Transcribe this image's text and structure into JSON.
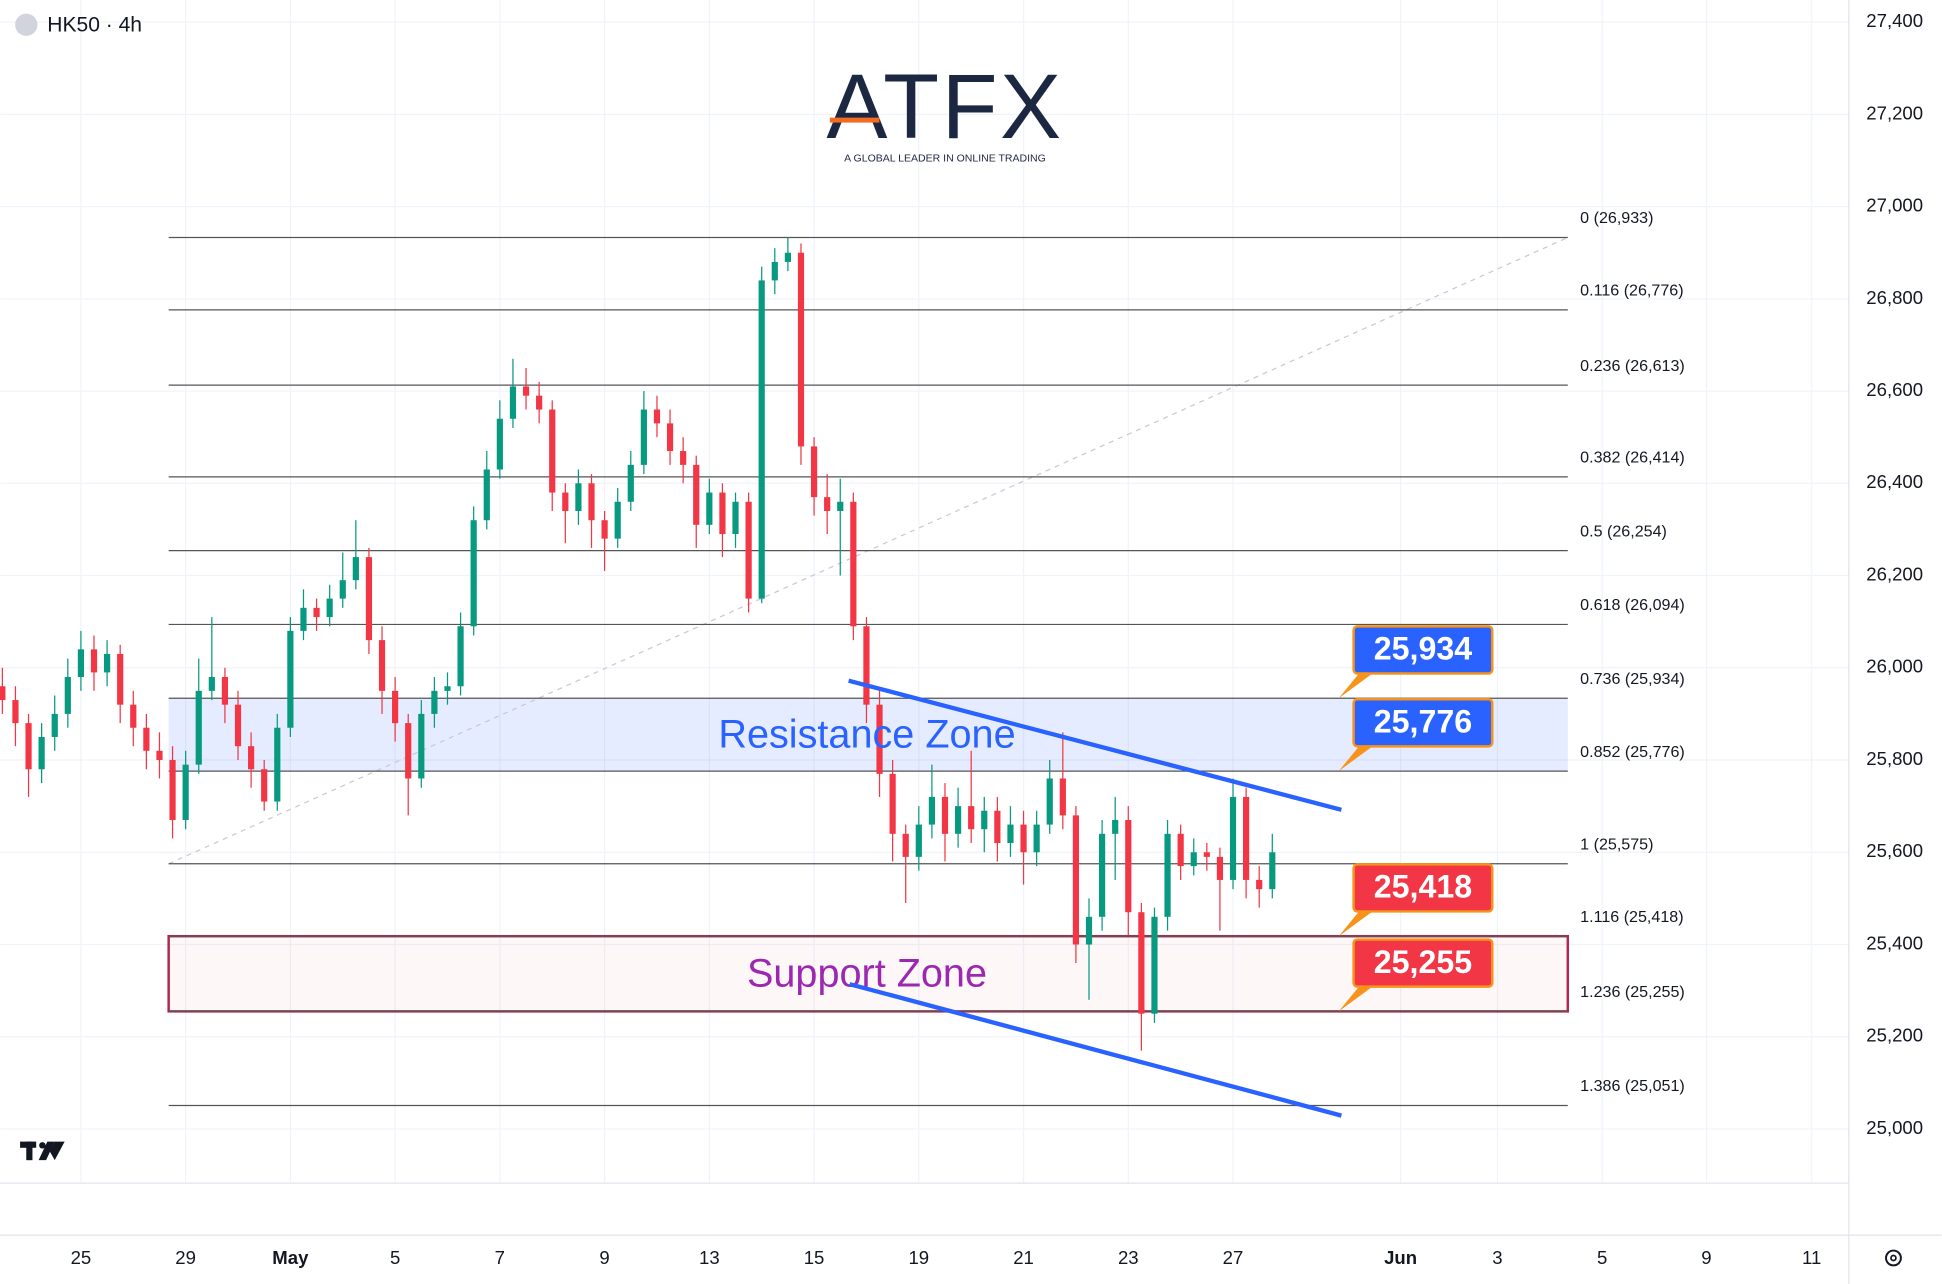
{
  "chart_data": {
    "type": "candlestick",
    "title": "HK50 · 4h",
    "logo": {
      "name": "ATFX",
      "tagline": "A GLOBAL LEADER IN ONLINE TRADING"
    },
    "up_color": "#089981",
    "down_color": "#f23645",
    "xlim": [
      -1.54,
      33.76
    ],
    "ylim": [
      24884,
      27448
    ],
    "xticks": [
      {
        "value": 0,
        "label": "25"
      },
      {
        "value": 2,
        "label": "29"
      },
      {
        "value": 4,
        "label": "May"
      },
      {
        "value": 6,
        "label": "5"
      },
      {
        "value": 8,
        "label": "7"
      },
      {
        "value": 10,
        "label": "9"
      },
      {
        "value": 12,
        "label": "13"
      },
      {
        "value": 14,
        "label": "15"
      },
      {
        "value": 16,
        "label": "19"
      },
      {
        "value": 18,
        "label": "21"
      },
      {
        "value": 20,
        "label": "23"
      },
      {
        "value": 22,
        "label": "27"
      },
      {
        "value": 25.2,
        "label": "Jun"
      },
      {
        "value": 27.05,
        "label": "3"
      },
      {
        "value": 29.05,
        "label": "5"
      },
      {
        "value": 31.04,
        "label": "9"
      },
      {
        "value": 33.05,
        "label": "11"
      }
    ],
    "yticks": [
      {
        "value": 25000,
        "label": "25,000"
      },
      {
        "value": 25200,
        "label": "25,200"
      },
      {
        "value": 25400,
        "label": "25,400"
      },
      {
        "value": 25600,
        "label": "25,600"
      },
      {
        "value": 25800,
        "label": "25,800"
      },
      {
        "value": 26000,
        "label": "26,000"
      },
      {
        "value": 26200,
        "label": "26,200"
      },
      {
        "value": 26400,
        "label": "26,400"
      },
      {
        "value": 26600,
        "label": "26,600"
      },
      {
        "value": 26800,
        "label": "26,800"
      },
      {
        "value": 27000,
        "label": "27,000"
      },
      {
        "value": 27200,
        "label": "27,200"
      },
      {
        "value": 27400,
        "label": "27,400"
      }
    ],
    "grid": true,
    "x": [
      -1.5,
      -1.25,
      -1,
      -0.75,
      -0.5,
      -0.25,
      0,
      0.25,
      0.5,
      0.75,
      1,
      1.25,
      1.5,
      1.75,
      2,
      2.25,
      2.5,
      2.75,
      3,
      3.25,
      3.5,
      3.75,
      4,
      4.25,
      4.5,
      4.75,
      5,
      5.25,
      5.5,
      5.75,
      6,
      6.25,
      6.5,
      6.75,
      7,
      7.25,
      7.5,
      7.75,
      8,
      8.25,
      8.5,
      8.75,
      9,
      9.25,
      9.5,
      9.75,
      10,
      10.25,
      10.5,
      10.75,
      11,
      11.25,
      11.5,
      11.75,
      12,
      12.25,
      12.5,
      12.75,
      13,
      13.25,
      13.5,
      13.75,
      14,
      14.25,
      14.5,
      14.75,
      15,
      15.25,
      15.5,
      15.75,
      16,
      16.25,
      16.5,
      16.75,
      17,
      17.25,
      17.5,
      17.75,
      18,
      18.25,
      18.5,
      18.75,
      19,
      19.25,
      19.5,
      19.75,
      20,
      20.25,
      20.5,
      20.75,
      21,
      21.25,
      21.5,
      21.75,
      22,
      22.25,
      22.5,
      22.75
    ],
    "open": [
      25960,
      25930,
      25880,
      25780,
      25850,
      25900,
      25980,
      26040,
      25990,
      26030,
      25920,
      25870,
      25820,
      25800,
      25670,
      25790,
      25950,
      25980,
      25920,
      25830,
      25780,
      25710,
      25870,
      26080,
      26130,
      26110,
      26150,
      26190,
      26240,
      26060,
      25950,
      25880,
      25760,
      25900,
      25950,
      25960,
      26090,
      26320,
      26430,
      26540,
      26610,
      26590,
      26560,
      26380,
      26340,
      26400,
      26320,
      26280,
      26360,
      26440,
      26560,
      26530,
      26470,
      26440,
      26310,
      26380,
      26290,
      26360,
      26150,
      26840,
      26880,
      26900,
      26480,
      26370,
      26340,
      26360,
      26090,
      25920,
      25770,
      25640,
      25590,
      25660,
      25720,
      25640,
      25700,
      25650,
      25690,
      25620,
      25660,
      25600,
      25660,
      25760,
      25680,
      25400,
      25460,
      25640,
      25670,
      25470,
      25250,
      25460,
      25640,
      25570,
      25600,
      25590,
      25540,
      25720,
      25540,
      25520
    ],
    "high": [
      26000,
      25960,
      25900,
      25880,
      25940,
      26020,
      26080,
      26070,
      26060,
      26050,
      25950,
      25900,
      25860,
      25830,
      25820,
      26020,
      26110,
      26000,
      25950,
      25860,
      25800,
      25900,
      26110,
      26170,
      26150,
      26180,
      26250,
      26320,
      26260,
      26090,
      25980,
      25900,
      25930,
      25980,
      25990,
      26120,
      26350,
      26470,
      26580,
      26670,
      26650,
      26620,
      26580,
      26400,
      26430,
      26420,
      26340,
      26390,
      26470,
      26600,
      26590,
      26560,
      26500,
      26460,
      26410,
      26400,
      26380,
      26380,
      26870,
      26910,
      26933,
      26920,
      26500,
      26420,
      26410,
      26380,
      26110,
      25950,
      25800,
      25660,
      25700,
      25790,
      25750,
      25740,
      25820,
      25720,
      25720,
      25700,
      25690,
      25690,
      25800,
      25860,
      25700,
      25500,
      25670,
      25720,
      25700,
      25490,
      25480,
      25670,
      25660,
      25630,
      25620,
      25610,
      25760,
      25740,
      25570,
      25640
    ],
    "low": [
      25900,
      25830,
      25720,
      25750,
      25820,
      25870,
      25950,
      25950,
      25960,
      25880,
      25830,
      25780,
      25760,
      25630,
      25650,
      25770,
      25930,
      25880,
      25800,
      25740,
      25690,
      25690,
      25850,
      26060,
      26080,
      26090,
      26130,
      26170,
      26030,
      25900,
      25840,
      25680,
      25740,
      25870,
      25920,
      25940,
      26070,
      26300,
      26410,
      26520,
      26560,
      26530,
      26340,
      26270,
      26310,
      26260,
      26210,
      26260,
      26340,
      26420,
      26500,
      26440,
      26400,
      26260,
      26290,
      26240,
      26260,
      26120,
      26140,
      26810,
      26860,
      26440,
      26330,
      26290,
      26200,
      26060,
      25880,
      25720,
      25580,
      25490,
      25560,
      25630,
      25580,
      25610,
      25620,
      25600,
      25580,
      25590,
      25530,
      25570,
      25640,
      25650,
      25360,
      25280,
      25430,
      25540,
      25420,
      25170,
      25230,
      25430,
      25540,
      25550,
      25560,
      25430,
      25520,
      25500,
      25480,
      25500
    ],
    "close": [
      25930,
      25880,
      25780,
      25850,
      25900,
      25980,
      26040,
      25990,
      26030,
      25920,
      25870,
      25820,
      25800,
      25670,
      25790,
      25950,
      25980,
      25920,
      25830,
      25780,
      25710,
      25870,
      26080,
      26130,
      26110,
      26150,
      26190,
      26240,
      26060,
      25950,
      25880,
      25760,
      25900,
      25950,
      25960,
      26090,
      26320,
      26430,
      26540,
      26610,
      26590,
      26560,
      26380,
      26340,
      26400,
      26320,
      26280,
      26360,
      26440,
      26560,
      26530,
      26470,
      26440,
      26310,
      26380,
      26290,
      26360,
      26150,
      26840,
      26880,
      26900,
      26480,
      26370,
      26340,
      26360,
      26090,
      25920,
      25770,
      25640,
      25590,
      25660,
      25720,
      25640,
      25700,
      25650,
      25690,
      25620,
      25660,
      25600,
      25660,
      25760,
      25680,
      25400,
      25460,
      25640,
      25670,
      25470,
      25250,
      25460,
      25640,
      25570,
      25600,
      25590,
      25540,
      25720,
      25540,
      25520,
      25600
    ],
    "fib_levels": [
      {
        "value": 26933,
        "label": "0 (26,933)"
      },
      {
        "value": 26776,
        "label": "0.116 (26,776)"
      },
      {
        "value": 26613,
        "label": "0.236 (26,613)"
      },
      {
        "value": 26414,
        "label": "0.382 (26,414)"
      },
      {
        "value": 26254,
        "label": "0.5 (26,254)"
      },
      {
        "value": 26094,
        "label": "0.618 (26,094)"
      },
      {
        "value": 25934,
        "label": "0.736 (25,934)"
      },
      {
        "value": 25776,
        "label": "0.852 (25,776)"
      },
      {
        "value": 25575,
        "label": "1 (25,575)"
      },
      {
        "value": 25418,
        "label": "1.116 (25,418)"
      },
      {
        "value": 25255,
        "label": "1.236 (25,255)"
      },
      {
        "value": 25051,
        "label": "1.386 (25,051)"
      }
    ],
    "zones": [
      {
        "label": "Resistance Zone",
        "from": 25776,
        "to": 25934,
        "color": "#2962ff"
      },
      {
        "label": "Support Zone",
        "from": 25255,
        "to": 25418,
        "color": "#9c27b0"
      }
    ],
    "trendlines": [
      {
        "x": [
          14.66,
          24.07
        ],
        "values": [
          25972,
          25692
        ],
        "color": "#2962ff"
      },
      {
        "x": [
          14.68,
          24.07
        ],
        "values": [
          25314,
          25029
        ],
        "color": "#2962ff"
      }
    ],
    "price_labels": [
      {
        "value": 25934,
        "label": "25,934",
        "color": "#2962ff"
      },
      {
        "value": 25776,
        "label": "25,776",
        "color": "#2962ff"
      },
      {
        "value": 25418,
        "label": "25,418",
        "color": "#f23645"
      },
      {
        "value": 25255,
        "label": "25,255",
        "color": "#f23645"
      }
    ]
  }
}
